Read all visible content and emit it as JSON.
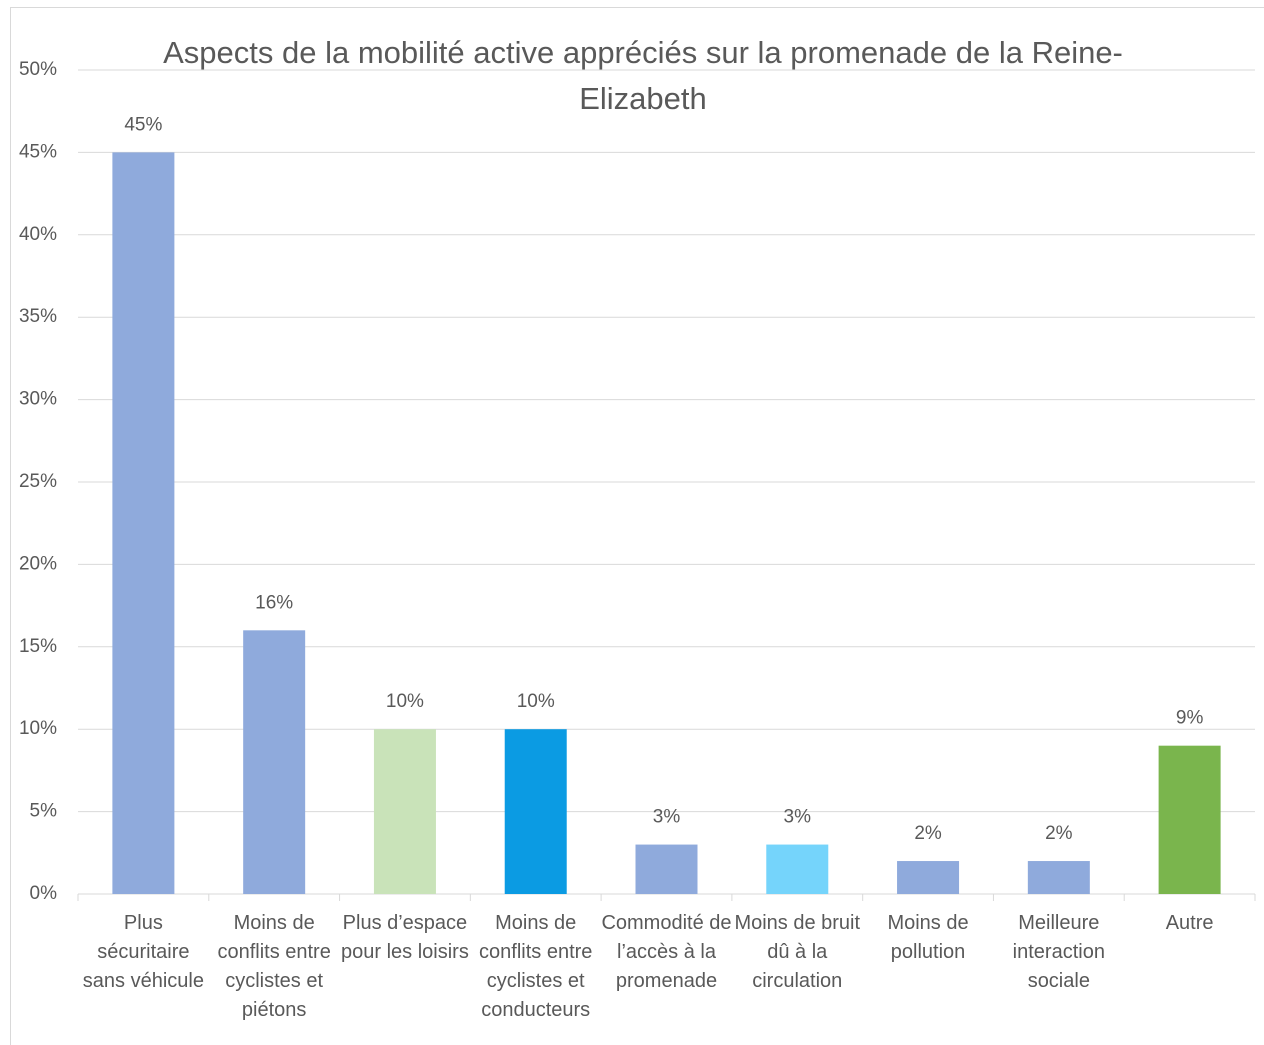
{
  "chart_data": {
    "type": "bar",
    "title": "Aspects de la mobilité active appréciés sur la promenade de la Reine-Elizabeth",
    "categories": [
      "Plus sécuritaire sans véhicule",
      "Moins de conflits entre cyclistes et piétons",
      "Plus d’espace pour les loisirs",
      "Moins de conflits entre cyclistes et conducteurs",
      "Commodité de l’accès à la promenade",
      "Moins de bruit dû à la circulation",
      "Moins de pollution",
      "Meilleure interaction sociale",
      "Autre"
    ],
    "values": [
      45,
      16,
      10,
      10,
      3,
      3,
      2,
      2,
      9
    ],
    "value_labels": [
      "45%",
      "16%",
      "10%",
      "10%",
      "3%",
      "3%",
      "2%",
      "2%",
      "9%"
    ],
    "colors": [
      "#8faadc",
      "#8faadc",
      "#c9e3b9",
      "#0b9be3",
      "#8faadc",
      "#75d4fb",
      "#8faadc",
      "#8faadc",
      "#7ab54d"
    ],
    "ylim": [
      0,
      50
    ],
    "yticks": [
      {
        "value": 0,
        "label": "0%"
      },
      {
        "value": 5,
        "label": "5%"
      },
      {
        "value": 10,
        "label": "10%"
      },
      {
        "value": 15,
        "label": "15%"
      },
      {
        "value": 20,
        "label": "20%"
      },
      {
        "value": 25,
        "label": "25%"
      },
      {
        "value": 30,
        "label": "30%"
      },
      {
        "value": 35,
        "label": "35%"
      },
      {
        "value": 40,
        "label": "40%"
      },
      {
        "value": 45,
        "label": "45%"
      },
      {
        "value": 50,
        "label": "50%"
      }
    ],
    "grid": true
  }
}
